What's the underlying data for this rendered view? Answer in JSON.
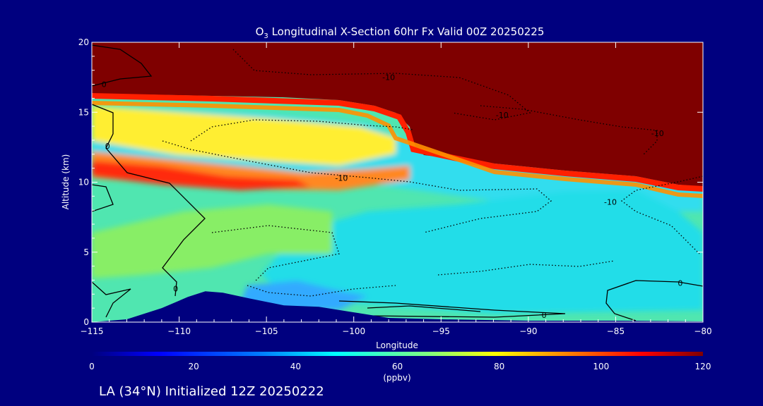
{
  "chart_data": {
    "type": "heatmap",
    "title": "O3 Longitudinal X-Section 60hr  Fx Valid 00Z 20250225",
    "title_main": "O",
    "title_sub": "3",
    "title_rest": " Longitudinal X-Section 60hr  Fx Valid 00Z 20250225",
    "xlabel": "Longitude",
    "ylabel": "Altitude (km)",
    "xlim": [
      -115,
      -80
    ],
    "ylim": [
      0,
      20
    ],
    "xticks": [
      -115,
      -110,
      -105,
      -100,
      -95,
      -90,
      -85,
      -80
    ],
    "xtick_labels": [
      "−115",
      "−110",
      "−105",
      "−100",
      "−95",
      "−90",
      "−85",
      "−80"
    ],
    "yticks": [
      0,
      5,
      10,
      15,
      20
    ],
    "ytick_labels": [
      "0",
      "5",
      "10",
      "15",
      "20"
    ],
    "colorbar": {
      "min": 0,
      "max": 120,
      "ticks": [
        0,
        20,
        40,
        60,
        80,
        100,
        120
      ],
      "tick_labels": [
        "0",
        "20",
        "40",
        "60",
        "80",
        "100",
        "120"
      ],
      "unit": "(ppbv)",
      "colors": [
        "#00007f",
        "#0000ff",
        "#0080ff",
        "#00ffff",
        "#80ff80",
        "#ffff00",
        "#ff8000",
        "#ff0000",
        "#7f0000"
      ]
    },
    "contour_labels": [
      {
        "text": "0",
        "x": -114.3,
        "y": 17.0
      },
      {
        "text": "0",
        "x": -114.1,
        "y": 12.6
      },
      {
        "text": "0",
        "x": -110.2,
        "y": 2.4
      },
      {
        "text": "-10",
        "x": -98.0,
        "y": 17.5
      },
      {
        "text": "-10",
        "x": -91.5,
        "y": 14.8
      },
      {
        "text": "-10",
        "x": -82.6,
        "y": 13.5
      },
      {
        "text": "-10",
        "x": -100.7,
        "y": 10.3
      },
      {
        "text": "-10",
        "x": -85.3,
        "y": 8.6
      },
      {
        "text": "0",
        "x": -89.1,
        "y": 0.5
      },
      {
        "text": "0",
        "x": -81.3,
        "y": 2.8
      }
    ],
    "terrain": [
      [
        -115,
        0.0
      ],
      [
        -113,
        0.2
      ],
      [
        -111,
        1.0
      ],
      [
        -109.5,
        1.8
      ],
      [
        -108.5,
        2.2
      ],
      [
        -107.5,
        2.1
      ],
      [
        -106,
        1.7
      ],
      [
        -104,
        1.2
      ],
      [
        -102,
        1.1
      ],
      [
        -100,
        0.7
      ],
      [
        -98,
        0.3
      ],
      [
        -95,
        0.2
      ],
      [
        -90,
        0.1
      ],
      [
        -85,
        0.1
      ],
      [
        -80,
        0.05
      ]
    ],
    "tropopause": [
      [
        -115,
        16.3
      ],
      [
        -110,
        16.0
      ],
      [
        -105,
        15.6
      ],
      [
        -100,
        15.0
      ],
      [
        -97.5,
        14.0
      ],
      [
        -97,
        13.0
      ],
      [
        -95,
        12.2
      ],
      [
        -90,
        11.4
      ],
      [
        -85,
        10.8
      ],
      [
        -82,
        10.0
      ],
      [
        -80,
        9.8
      ]
    ]
  },
  "footer": {
    "station_label": "LA (34°N) Initialized 12Z 20250222"
  }
}
